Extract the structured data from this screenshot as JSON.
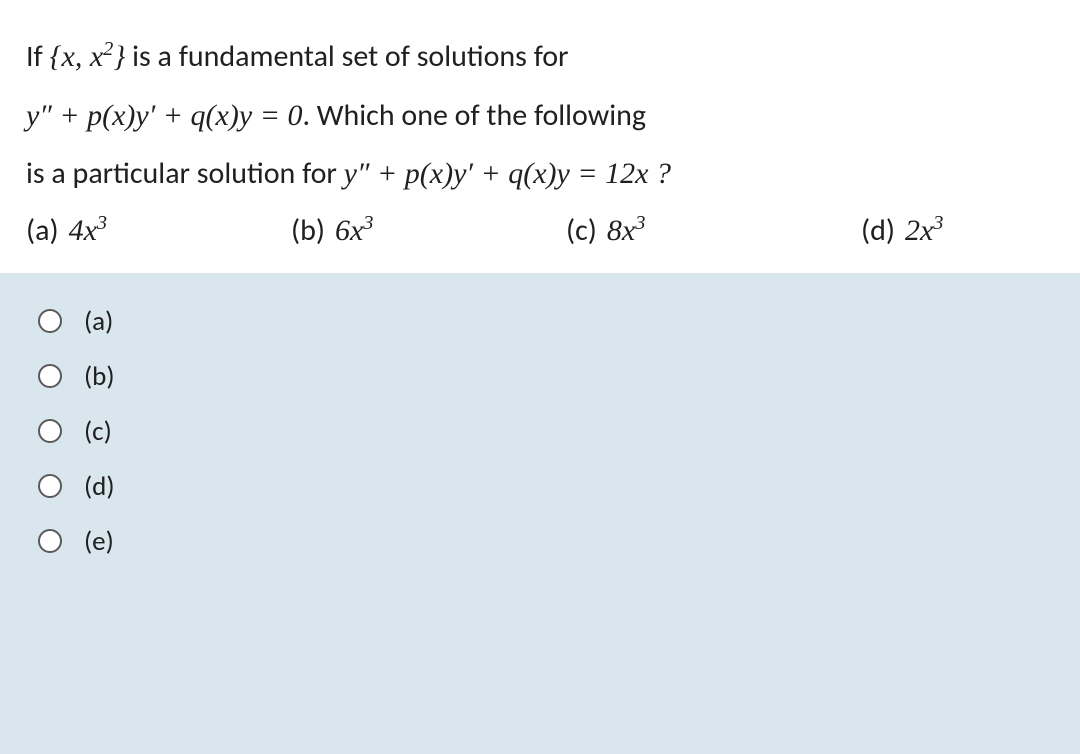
{
  "question": {
    "line1_prefix": "If ",
    "set_expr": "{x, x²}",
    "line1_mid": " is a fundamental set of solutions for",
    "eq1_lhs": "y″ + p(x)y′ + q(x)y = 0",
    "line2_suffix": ". Which one of the following",
    "line3_prefix": "is a particular solution for ",
    "eq2": "y″ + p(x)y′ + q(x)y = 12x ?"
  },
  "answers": {
    "a": {
      "label": "(a)",
      "coef": "4",
      "var": "x",
      "exp": "3"
    },
    "b": {
      "label": "(b)",
      "coef": "6",
      "var": "x",
      "exp": "3"
    },
    "c": {
      "label": "(c)",
      "coef": "8",
      "var": "x",
      "exp": "3"
    },
    "d": {
      "label": "(d)",
      "coef": "2",
      "var": "x",
      "exp": "3"
    }
  },
  "options": {
    "a": "(a)",
    "b": "(b)",
    "c": "(c)",
    "d": "(d)",
    "e": "(e)"
  },
  "colors": {
    "page_bg": "#d9e6ed",
    "box_bg": "#ffffff",
    "text": "#202020",
    "radio_border": "#5a5a5a"
  },
  "typography": {
    "body_font": "Calibri",
    "math_font": "Cambria Math",
    "question_fontsize": 30,
    "option_fontsize": 27
  }
}
